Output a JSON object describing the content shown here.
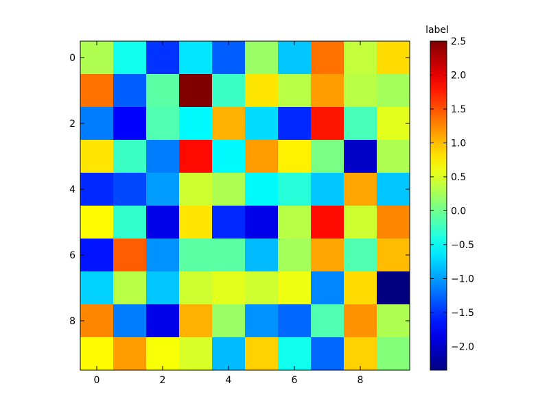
{
  "chart_data": {
    "type": "heatmap",
    "title": "",
    "xlabel": "",
    "ylabel": "",
    "x_tick_labels": [
      "0",
      "2",
      "4",
      "6",
      "8"
    ],
    "x_tick_values": [
      0,
      2,
      4,
      6,
      8
    ],
    "y_tick_labels": [
      "0",
      "2",
      "4",
      "6",
      "8"
    ],
    "y_tick_values": [
      0,
      2,
      4,
      6,
      8
    ],
    "colorbar": {
      "label": "label",
      "range": [
        -2.35,
        2.5
      ],
      "tick_values": [
        -2.0,
        -1.5,
        -1.0,
        -0.5,
        0.0,
        0.5,
        1.0,
        1.5,
        2.0,
        2.5
      ],
      "tick_labels": [
        "−2.0",
        "−1.5",
        "−1.0",
        "−0.5",
        "0.0",
        "0.5",
        "1.0",
        "1.5",
        "2.0",
        "2.5"
      ],
      "colormap": "jet"
    },
    "values": [
      [
        0.3,
        -0.45,
        -1.5,
        -0.65,
        -1.3,
        0.2,
        -0.8,
        1.35,
        0.4,
        0.85
      ],
      [
        1.35,
        -1.3,
        -0.1,
        2.5,
        -0.25,
        0.8,
        0.35,
        1.15,
        0.35,
        0.25
      ],
      [
        -1.15,
        -1.75,
        -0.15,
        -0.55,
        1.05,
        -0.7,
        -1.55,
        1.8,
        -0.2,
        0.55
      ],
      [
        0.8,
        -0.25,
        -1.15,
        1.85,
        -0.55,
        1.15,
        0.75,
        0.05,
        -2.0,
        0.3
      ],
      [
        -1.55,
        -1.4,
        -1.0,
        0.45,
        0.3,
        -0.55,
        -0.35,
        -0.8,
        1.1,
        -0.8
      ],
      [
        0.7,
        -0.3,
        -1.85,
        0.8,
        -1.55,
        -1.85,
        0.35,
        1.85,
        0.45,
        1.25
      ],
      [
        -1.65,
        1.45,
        -1.05,
        -0.1,
        -0.1,
        -0.85,
        0.25,
        1.1,
        -0.15,
        1.0
      ],
      [
        -0.75,
        0.35,
        -0.8,
        0.45,
        0.55,
        0.45,
        0.6,
        -1.1,
        0.85,
        -2.35
      ],
      [
        1.25,
        -1.15,
        -1.85,
        1.05,
        0.2,
        -1.05,
        -1.25,
        -0.15,
        1.2,
        0.3
      ],
      [
        0.7,
        1.15,
        0.65,
        0.5,
        -0.85,
        0.9,
        -0.45,
        -1.25,
        0.9,
        0.1
      ]
    ]
  }
}
